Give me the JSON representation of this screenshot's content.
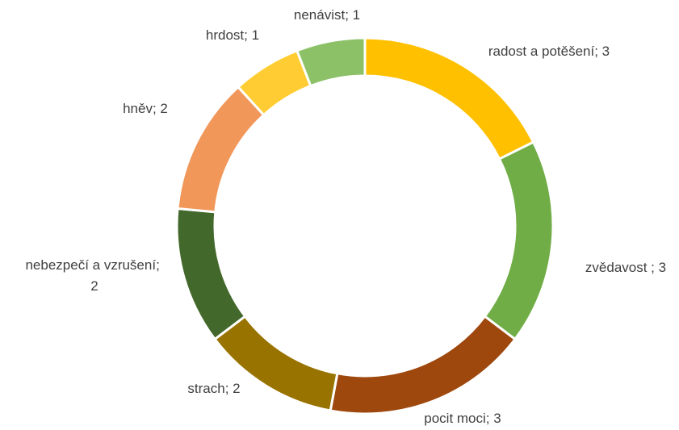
{
  "chart_data": {
    "type": "donut",
    "categories": [
      "radost a potěšení",
      "zvědavost ",
      "pocit moci",
      "strach",
      "nebezpečí a vzrušení",
      "hněv",
      "hrdost",
      "nenávist"
    ],
    "values": [
      3,
      3,
      3,
      2,
      2,
      2,
      1,
      1
    ],
    "colors": [
      "#FFC000",
      "#70AD47",
      "#9E480E",
      "#997300",
      "#43682B",
      "#F1975A",
      "#FFCD33",
      "#8CC168"
    ],
    "label_separator": "; "
  }
}
